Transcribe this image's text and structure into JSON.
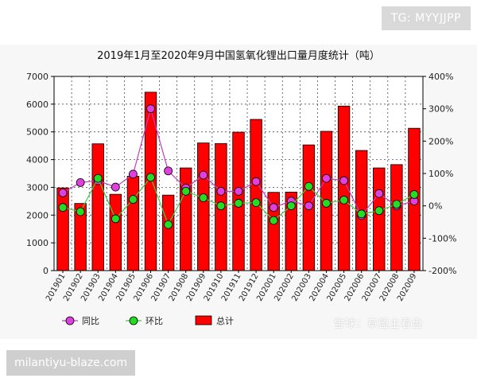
{
  "header_tag": "TG: MYYJJPP",
  "footer_url": "milantiyu-blaze.com",
  "watermark": "雪球：章盟主看盘",
  "chart_data": {
    "type": "bar",
    "title": "2019年1月至2020年9月中国氢氧化锂出口量月度统计（吨）",
    "categories": [
      "201901",
      "201902",
      "201903",
      "201904",
      "201905",
      "201906",
      "201907",
      "201908",
      "201909",
      "201910",
      "201911",
      "201912",
      "202001",
      "202002",
      "202003",
      "202004",
      "202005",
      "202006",
      "202007",
      "202008",
      "202009"
    ],
    "series": [
      {
        "name": "总计",
        "kind": "bar",
        "axis": "left",
        "color": "#ff0000",
        "values": [
          2980,
          2420,
          4570,
          2750,
          3400,
          6430,
          2720,
          3700,
          4600,
          4580,
          4990,
          5450,
          2820,
          2830,
          4530,
          5020,
          5930,
          4330,
          3700,
          3820,
          5130
        ]
      },
      {
        "name": "同比",
        "kind": "line",
        "axis": "right",
        "color": "#c040c0",
        "marker": "#e040e0",
        "values": [
          40,
          72,
          78,
          58,
          98,
          300,
          108,
          55,
          95,
          45,
          45,
          75,
          -5,
          15,
          0,
          85,
          78,
          -30,
          38,
          0,
          15
        ]
      },
      {
        "name": "环比",
        "kind": "line",
        "axis": "right",
        "color": "#44cc44",
        "marker": "#22dd22",
        "values": [
          -5,
          -18,
          85,
          -40,
          20,
          88,
          -58,
          45,
          25,
          0,
          8,
          10,
          -45,
          0,
          60,
          8,
          18,
          -25,
          -15,
          5,
          35
        ]
      }
    ],
    "ylim_left": [
      0,
      7000
    ],
    "yticks_left": [
      "0",
      "1000",
      "2000",
      "3000",
      "4000",
      "5000",
      "6000",
      "7000"
    ],
    "ylim_right": [
      -200,
      400
    ],
    "yticks_right": [
      "-200%",
      "-100%",
      "0%",
      "100%",
      "200%",
      "300%",
      "400%"
    ],
    "grid": true,
    "legend_position": "bottom-left"
  }
}
